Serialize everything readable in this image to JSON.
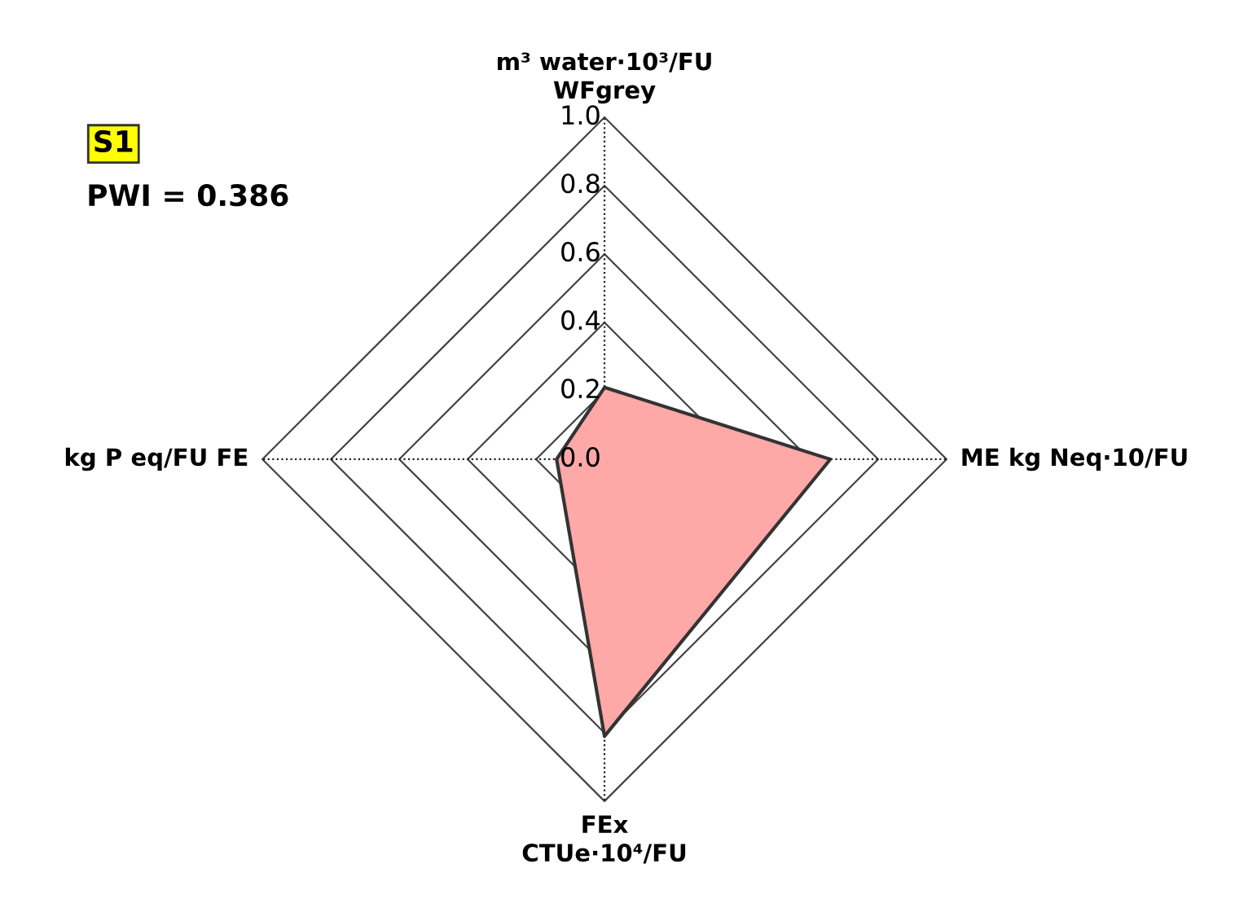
{
  "chart_data": {
    "type": "radar",
    "categories": [
      "m³ water·10³/FU\nWFgrey",
      "ME kg Neq·10/FU",
      "FEx\nCTUe·10⁴/FU",
      "kg P eq/FU FE"
    ],
    "series": [
      {
        "color": "#ffa8a8",
        "values": [
          0.21,
          0.66,
          0.81,
          0.14
        ]
      }
    ],
    "ylim": [
      0,
      1.0
    ],
    "yticks": [
      {
        "value": 0,
        "label": "0.0"
      },
      {
        "value": 0.2,
        "label": "0.2"
      },
      {
        "value": 0.4,
        "label": "0.4"
      },
      {
        "value": 0.6,
        "label": "0.6"
      },
      {
        "value": 0.8,
        "label": "0.8"
      },
      {
        "value": 1.0,
        "label": "1.0"
      }
    ],
    "grid": true,
    "annotations": [
      "S1",
      "PWI = 0.386"
    ]
  }
}
